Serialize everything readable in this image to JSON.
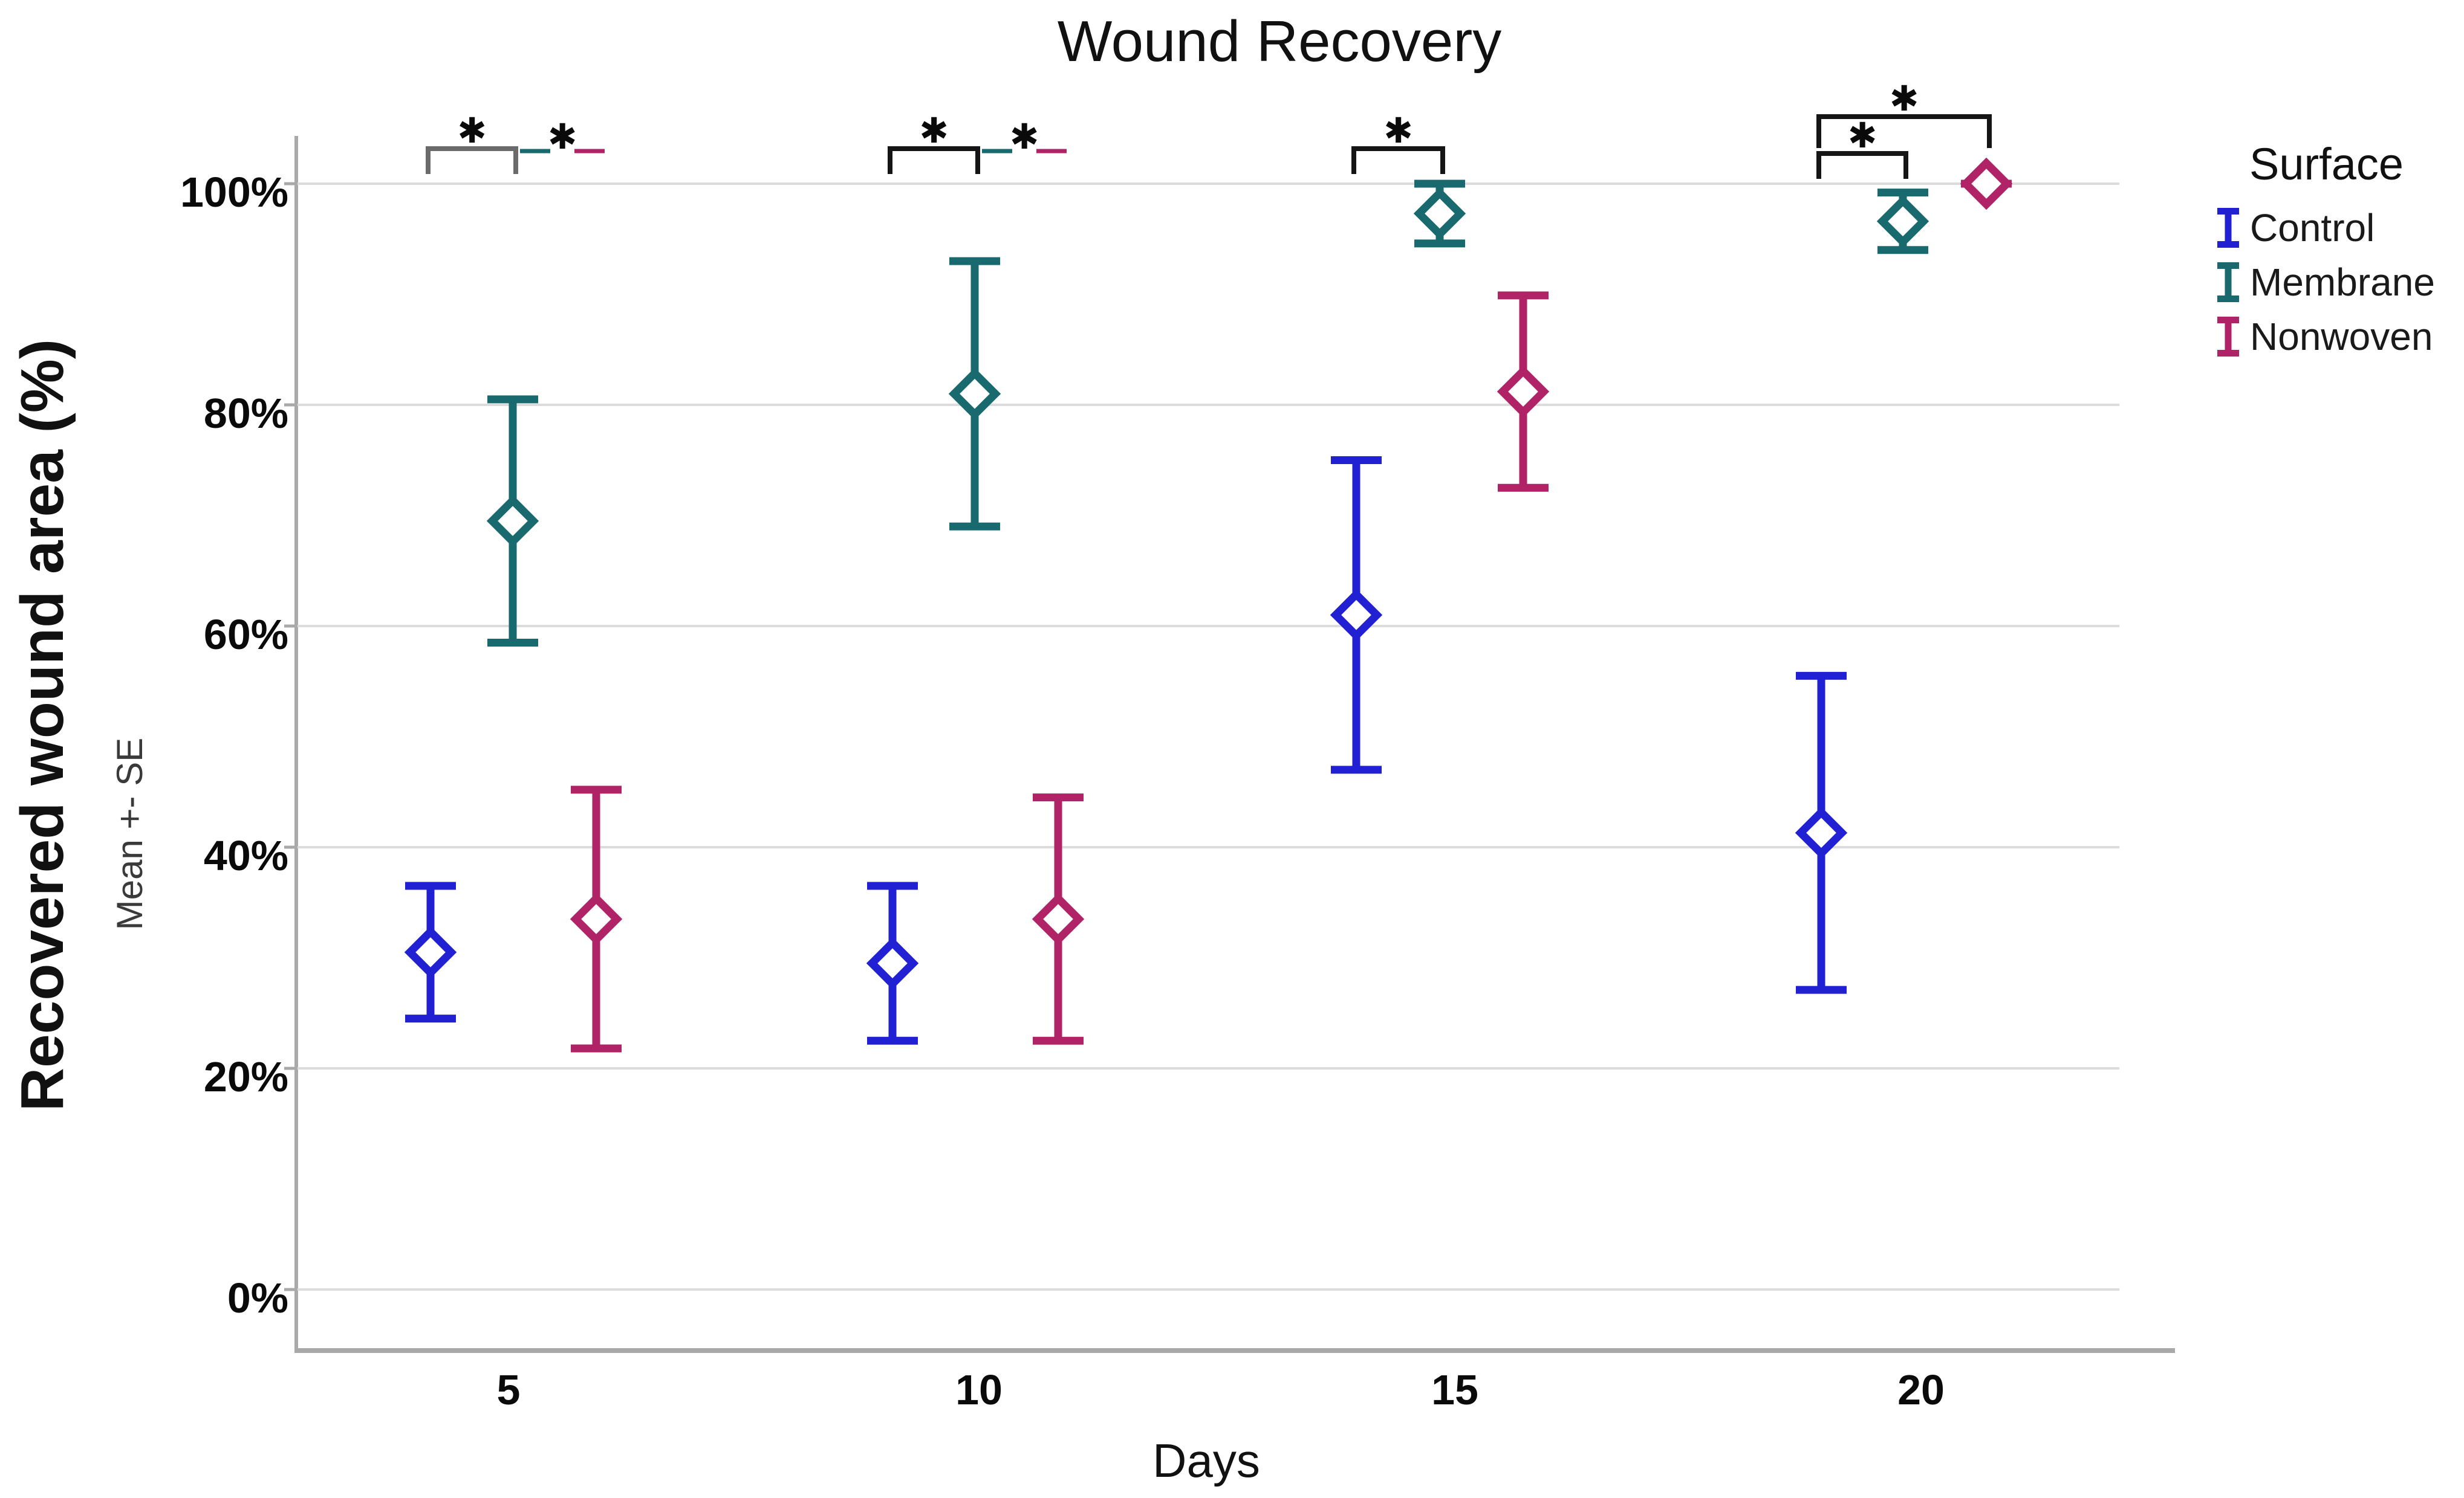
{
  "chart_data": {
    "type": "errorbar",
    "title": "Wound Recovery",
    "xlabel": "Days",
    "ylabel": "Recovered wound area (%)",
    "ylabel_sub": "Mean +- SE",
    "legend_title": "Surface",
    "legend_position": "right",
    "star_glyph": "✱",
    "grid": true,
    "categories": [
      "5",
      "10",
      "15",
      "20"
    ],
    "ytick_labels_top_down": [
      "100%",
      "80%",
      "60%",
      "40%",
      "20%",
      "0%"
    ],
    "ytick_values_top_down": [
      100,
      80,
      60,
      40,
      20,
      0
    ],
    "ylim": [
      0,
      100
    ],
    "axis_color": "#A9A9A9",
    "grid_color": "#DCDCDC",
    "series": [
      {
        "name": "Control",
        "color": "#2121D3",
        "marker": "open-diamond",
        "means": [
          30.5,
          29.5,
          61.0,
          41.3
        ],
        "lower": [
          24.5,
          22.5,
          47.0,
          27.1
        ],
        "upper": [
          36.5,
          36.5,
          75.0,
          55.5
        ]
      },
      {
        "name": "Membrane",
        "color": "#186A6E",
        "marker": "open-diamond",
        "means": [
          69.5,
          81.0,
          97.3,
          96.6
        ],
        "lower": [
          58.5,
          69.0,
          94.6,
          94.0
        ],
        "upper": [
          80.5,
          93.0,
          100.0,
          99.2
        ]
      },
      {
        "name": "Nonwoven",
        "color": "#B02367",
        "marker": "open-diamond",
        "means": [
          33.5,
          33.5,
          81.2,
          100.0
        ],
        "lower": [
          21.8,
          22.5,
          72.5,
          100.0
        ],
        "upper": [
          45.2,
          44.5,
          89.9,
          100.0
        ]
      }
    ],
    "significance": [
      {
        "day": "5",
        "type": "bracket",
        "between": [
          "Control",
          "Membrane"
        ],
        "label": "*",
        "bracket_color": "#6B6B6B",
        "level": 1
      },
      {
        "day": "5",
        "type": "dash-pair",
        "between": [
          "Membrane",
          "Nonwoven"
        ],
        "label": "*",
        "level": 1
      },
      {
        "day": "10",
        "type": "bracket",
        "between": [
          "Control",
          "Membrane"
        ],
        "label": "*",
        "bracket_color": "#151515",
        "level": 1
      },
      {
        "day": "10",
        "type": "dash-pair",
        "between": [
          "Membrane",
          "Nonwoven"
        ],
        "label": "*",
        "level": 1
      },
      {
        "day": "15",
        "type": "bracket",
        "between": [
          "Control",
          "Membrane"
        ],
        "label": "*",
        "bracket_color": "#151515",
        "level": 1
      },
      {
        "day": "20",
        "type": "bracket",
        "between": [
          "Control",
          "Membrane"
        ],
        "label": "*",
        "bracket_color": "#151515",
        "level": 1
      },
      {
        "day": "20",
        "type": "bracket",
        "between": [
          "Control",
          "Nonwoven"
        ],
        "label": "*",
        "bracket_color": "#151515",
        "level": 2
      }
    ]
  }
}
